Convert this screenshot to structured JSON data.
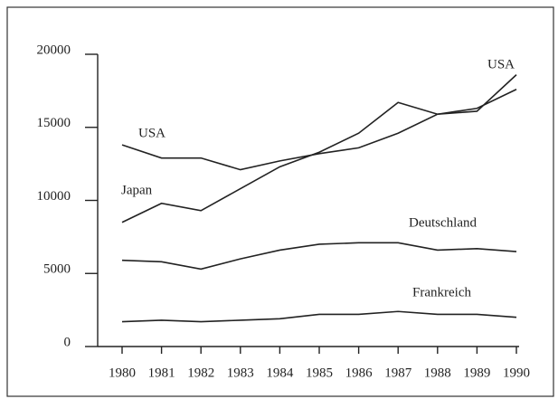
{
  "chart_data": {
    "type": "line",
    "x": [
      1980,
      1981,
      1982,
      1983,
      1984,
      1985,
      1986,
      1987,
      1988,
      1989,
      1990
    ],
    "series": [
      {
        "name": "USA",
        "color": "#222222",
        "values": [
          13800,
          12900,
          12900,
          12100,
          12700,
          13200,
          13600,
          14600,
          15900,
          16300,
          17600
        ]
      },
      {
        "name": "Japan",
        "color": "#222222",
        "values": [
          8500,
          9800,
          9300,
          10800,
          12300,
          13300,
          14600,
          16700,
          15900,
          16100,
          18600
        ]
      },
      {
        "name": "Deutschland",
        "color": "#222222",
        "values": [
          5900,
          5800,
          5300,
          6000,
          6600,
          7000,
          7100,
          7100,
          6600,
          6700,
          6500
        ]
      },
      {
        "name": "Frankreich",
        "color": "#222222",
        "values": [
          1700,
          1800,
          1700,
          1800,
          1900,
          2200,
          2200,
          2400,
          2200,
          2200,
          2000
        ]
      }
    ],
    "annotations": [
      {
        "text": "USA"
      }
    ],
    "xlim": [
      1980,
      1990
    ],
    "xticks": [
      1980,
      1981,
      1982,
      1983,
      1984,
      1985,
      1986,
      1987,
      1988,
      1989,
      1990
    ],
    "ylim": [
      0,
      20000
    ],
    "yticks": [
      0,
      5000,
      10000,
      15000,
      20000
    ]
  }
}
